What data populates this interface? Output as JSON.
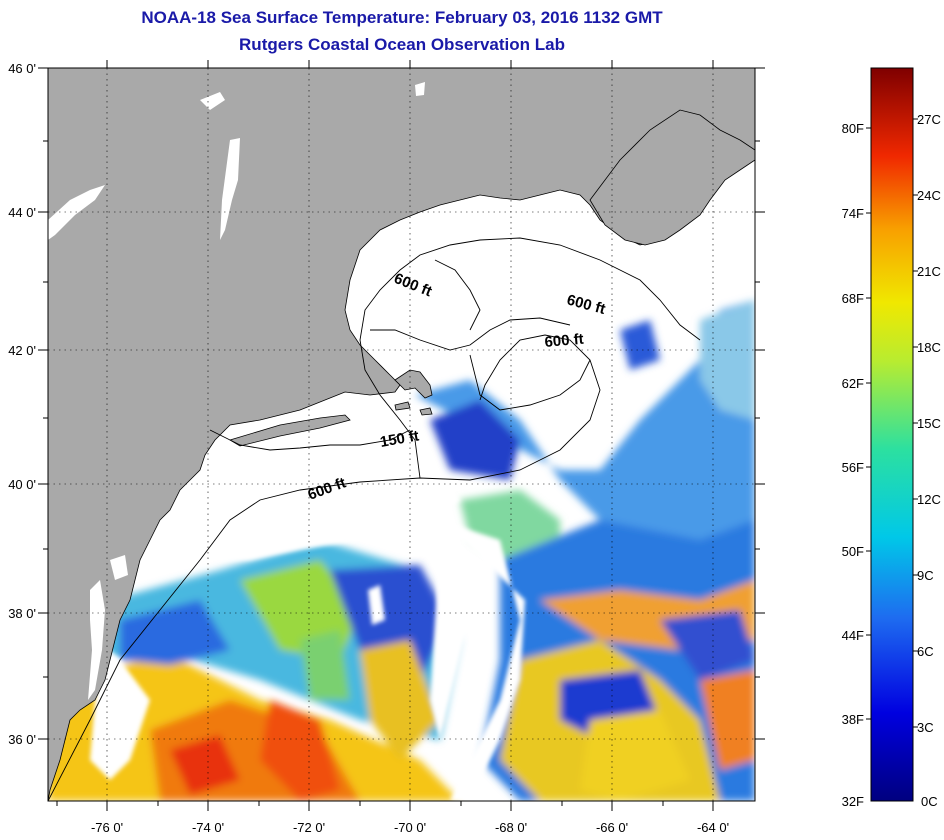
{
  "title": "NOAA-18 Sea Surface Temperature:  February 03, 2016 1132 GMT",
  "subtitle": "Rutgers Coastal Ocean Observation Lab",
  "map": {
    "lon_ticks": [
      "-76 0'",
      "-74 0'",
      "-72 0'",
      "-70 0'",
      "-68 0'",
      "-66 0'",
      "-64 0'"
    ],
    "lat_ticks": [
      "46 0'",
      "44 0'",
      "42 0'",
      "40 0'",
      "38 0'",
      "36 0'"
    ],
    "lon_range": [
      -77,
      -63
    ],
    "lat_range": [
      35,
      46
    ],
    "grid": "dotted",
    "land_color": "#a9a9a9",
    "nodata_color": "#ffffff",
    "contour_labels": [
      "600 ft",
      "600 ft",
      "600 ft",
      "150 ft",
      "600 ft"
    ]
  },
  "colorbar": {
    "fahrenheit": [
      "80F",
      "74F",
      "68F",
      "62F",
      "56F",
      "50F",
      "44F",
      "38F",
      "32F"
    ],
    "celsius": [
      "27C",
      "24C",
      "21C",
      "18C",
      "15C",
      "12C",
      "9C",
      "6C",
      "3C",
      "0C"
    ],
    "range_celsius": [
      0,
      29
    ]
  }
}
